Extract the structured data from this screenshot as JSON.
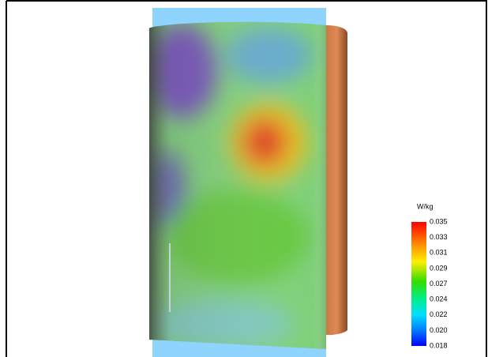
{
  "colorbar": {
    "unit": "W/kg",
    "ticks": [
      "0.035",
      "0.033",
      "0.031",
      "0.029",
      "0.027",
      "0.024",
      "0.022",
      "0.020",
      "0.018"
    ]
  }
}
